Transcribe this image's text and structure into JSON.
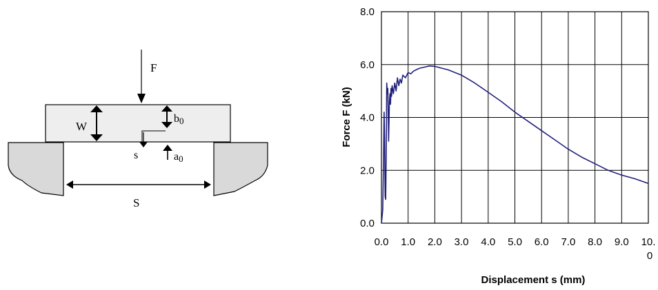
{
  "diagram": {
    "labels": {
      "force": "F",
      "height": "W",
      "ligament": "b",
      "ligament_sub": "0",
      "notch": "a",
      "notch_sub": "0",
      "displacement": "s",
      "span": "S"
    }
  },
  "chart_data": {
    "type": "line",
    "title": "",
    "xlabel": "Displacement s (mm)",
    "ylabel": "Force  F (kN)",
    "xlim": [
      0,
      10
    ],
    "ylim": [
      0,
      8
    ],
    "grid": true,
    "color": "#1f1f7a",
    "x_ticks": [
      "0.0",
      "1.0",
      "2.0",
      "3.0",
      "4.0",
      "5.0",
      "6.0",
      "7.0",
      "8.0",
      "9.0",
      "10.0"
    ],
    "y_ticks": [
      "0.0",
      "2.0",
      "4.0",
      "6.0",
      "8.0"
    ],
    "series": [
      {
        "x": [
          0.0,
          0.02,
          0.05,
          0.08,
          0.1,
          0.12,
          0.14,
          0.16,
          0.18,
          0.2,
          0.22,
          0.24,
          0.27,
          0.3,
          0.32,
          0.34,
          0.36,
          0.38,
          0.4,
          0.45,
          0.5,
          0.55,
          0.6,
          0.65,
          0.7,
          0.75,
          0.8,
          0.9,
          1.0,
          1.1,
          1.2,
          1.3,
          1.4,
          1.5,
          1.6,
          1.8,
          2.0,
          2.2,
          2.5,
          3.0,
          3.5,
          4.0,
          4.5,
          5.0,
          5.5,
          6.0,
          6.5,
          7.0,
          7.5,
          8.0,
          8.5,
          9.0,
          9.5,
          10.0
        ],
        "values": [
          0.0,
          0.2,
          0.5,
          2.5,
          4.2,
          3.2,
          1.0,
          0.9,
          2.8,
          5.3,
          4.9,
          5.1,
          3.1,
          4.6,
          4.9,
          4.5,
          5.1,
          4.8,
          5.2,
          4.9,
          5.3,
          5.0,
          5.5,
          5.2,
          5.45,
          5.3,
          5.6,
          5.5,
          5.7,
          5.65,
          5.75,
          5.8,
          5.85,
          5.88,
          5.9,
          5.95,
          5.93,
          5.88,
          5.8,
          5.6,
          5.3,
          4.95,
          4.6,
          4.2,
          3.85,
          3.5,
          3.15,
          2.8,
          2.5,
          2.25,
          2.0,
          1.82,
          1.68,
          1.5
        ]
      }
    ]
  }
}
